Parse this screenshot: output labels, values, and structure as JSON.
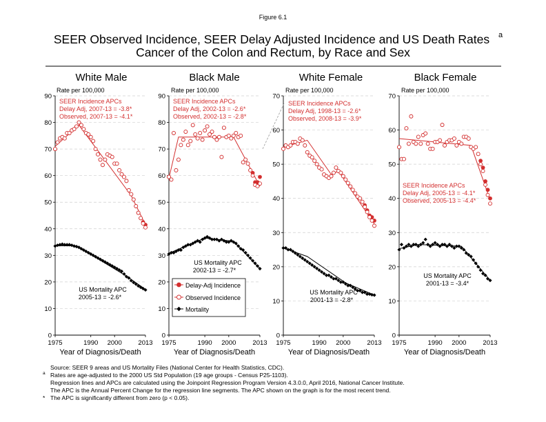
{
  "figure": {
    "label": "Figure 6.1",
    "title_line1": "SEER Observed Incidence, SEER Delay Adjusted Incidence and US Death Rates",
    "title_superscript": "a",
    "title_line2": "Cancer of the Colon and Rectum, by Race and Sex"
  },
  "colors": {
    "incidence": "#d32f2f",
    "mortality": "#000000",
    "grid": "#cfcfcf"
  },
  "legend": {
    "delay_adj": "Delay-Adj Incidence",
    "observed": "Observed Incidence",
    "mortality": "Mortality"
  },
  "footnotes": {
    "source": "Source: SEER 9 areas and US Mortality Files (National Center for Health Statistics, CDC).",
    "a_marker": "a",
    "a_text": "Rates are age-adjusted to the 2000 US Std Population (19 age groups - Census P25-1103).",
    "regression": "Regression lines and APCs are calculated using the Joinpoint Regression Program Version 4.3.0.0, April 2016, National Cancer Institute.",
    "apc_def": "The APC is the Annual Percent Change for the regression line segments. The APC shown on the graph is for the most recent trend.",
    "star_marker": "*",
    "star_text": "The APC is significantly different from zero (p < 0.05)."
  },
  "chart_data": [
    {
      "type": "scatter",
      "title": "White Male",
      "ylabel": "Rate per 100,000",
      "xlabel": "Year of Diagnosis/Death",
      "xlim": [
        1975,
        2013
      ],
      "ylim": [
        0,
        90
      ],
      "xticks": [
        1975,
        1990,
        2000,
        2013
      ],
      "yticks": [
        0,
        10,
        20,
        30,
        40,
        50,
        60,
        70,
        80,
        90
      ],
      "grid": true,
      "legend": "none",
      "annotations": {
        "incidence_header": "SEER Incidence APCs",
        "incidence_delay": "Delay Adj, 2007-13 = -3.8*",
        "incidence_observed": "Observed, 2007-13 = -4.1*",
        "mortality_header": "US Mortality APC",
        "mortality_value": "2005-13 = -2.6*"
      },
      "x": [
        1975,
        1976,
        1977,
        1978,
        1979,
        1980,
        1981,
        1982,
        1983,
        1984,
        1985,
        1986,
        1987,
        1988,
        1989,
        1990,
        1991,
        1992,
        1993,
        1994,
        1995,
        1996,
        1997,
        1998,
        1999,
        2000,
        2001,
        2002,
        2003,
        2004,
        2005,
        2006,
        2007,
        2008,
        2009,
        2010,
        2011,
        2012,
        2013
      ],
      "series": [
        {
          "name": "Delay-Adj Incidence",
          "kind": "delay",
          "values": [
            70.0,
            72.5,
            74.0,
            74.5,
            74.0,
            76.0,
            76.0,
            77.0,
            77.5,
            78.5,
            80.0,
            79.0,
            77.5,
            76.0,
            75.5,
            74.5,
            73.0,
            70.0,
            68.0,
            66.0,
            64.0,
            66.0,
            68.0,
            67.5,
            67.0,
            64.5,
            64.5,
            62.0,
            60.5,
            59.5,
            58.0,
            54.5,
            53.0,
            51.0,
            48.5,
            46.0,
            44.0,
            42.5,
            41.5
          ]
        },
        {
          "name": "Observed Incidence",
          "kind": "observed",
          "values": [
            70.0,
            72.5,
            74.0,
            74.5,
            74.0,
            76.0,
            76.0,
            77.0,
            77.5,
            78.5,
            80.0,
            79.0,
            77.5,
            76.0,
            75.5,
            74.5,
            73.0,
            70.0,
            68.0,
            66.0,
            64.0,
            66.0,
            68.0,
            67.5,
            67.0,
            64.5,
            64.5,
            62.0,
            60.5,
            59.5,
            58.0,
            54.5,
            53.0,
            51.0,
            48.5,
            46.0,
            44.0,
            42.0,
            40.5
          ]
        },
        {
          "name": "Mortality",
          "kind": "mortality",
          "values": [
            33.5,
            33.8,
            34.0,
            34.2,
            34.0,
            34.0,
            34.0,
            33.8,
            33.5,
            33.3,
            33.0,
            32.5,
            32.0,
            31.5,
            31.0,
            30.5,
            30.0,
            29.5,
            29.0,
            28.5,
            28.0,
            27.5,
            27.0,
            26.5,
            26.0,
            25.5,
            25.0,
            24.5,
            24.0,
            23.0,
            22.0,
            21.5,
            20.5,
            19.8,
            19.2,
            18.5,
            18.0,
            17.5,
            17.0
          ]
        }
      ],
      "joinpoint_lines": [
        {
          "kind": "incidence",
          "points": [
            [
              1975,
              71.0
            ],
            [
              1985,
              79.0
            ],
            [
              2007,
              52.5
            ],
            [
              2013,
              41.5
            ]
          ]
        },
        {
          "kind": "mortality",
          "points": [
            [
              1975,
              33.6
            ],
            [
              1984,
              33.6
            ],
            [
              2005,
              22.2
            ],
            [
              2013,
              17.2
            ]
          ]
        }
      ]
    },
    {
      "type": "scatter",
      "title": "Black Male",
      "ylabel": "Rate per 100,000",
      "xlabel": "Year of Diagnosis/Death",
      "xlim": [
        1975,
        2013
      ],
      "ylim": [
        0,
        90
      ],
      "xticks": [
        1975,
        1990,
        2000,
        2013
      ],
      "yticks": [
        0,
        10,
        20,
        30,
        40,
        50,
        60,
        70,
        80,
        90
      ],
      "grid": true,
      "legend": "bottom-left",
      "annotations": {
        "incidence_header": "SEER Incidence APCs",
        "incidence_delay": "Delay Adj, 2002-13 = -2.6*",
        "incidence_observed": "Observed, 2002-13 = -2.8*",
        "mortality_header": "US Mortality APC",
        "mortality_value": "2002-13 = -2.7*"
      },
      "x": [
        1975,
        1976,
        1977,
        1978,
        1979,
        1980,
        1981,
        1982,
        1983,
        1984,
        1985,
        1986,
        1987,
        1988,
        1989,
        1990,
        1991,
        1992,
        1993,
        1994,
        1995,
        1996,
        1997,
        1998,
        1999,
        2000,
        2001,
        2002,
        2003,
        2004,
        2005,
        2006,
        2007,
        2008,
        2009,
        2010,
        2011,
        2012,
        2013
      ],
      "series": [
        {
          "name": "Delay-Adj Incidence",
          "kind": "delay",
          "values": [
            59.5,
            58.5,
            76.0,
            62.0,
            66.0,
            71.5,
            73.5,
            76.5,
            71.5,
            73.0,
            79.0,
            75.5,
            74.0,
            76.0,
            73.5,
            77.0,
            78.5,
            75.5,
            76.5,
            74.5,
            73.5,
            74.5,
            67.0,
            78.0,
            74.5,
            75.0,
            74.0,
            75.0,
            76.0,
            74.5,
            75.0,
            65.0,
            66.0,
            64.5,
            62.0,
            61.0,
            57.5,
            57.5,
            59.5
          ]
        },
        {
          "name": "Observed Incidence",
          "kind": "observed",
          "values": [
            59.5,
            58.5,
            76.0,
            62.0,
            66.0,
            71.5,
            73.5,
            76.5,
            71.5,
            73.0,
            79.0,
            75.5,
            74.0,
            76.0,
            73.5,
            77.0,
            78.5,
            75.5,
            76.5,
            74.5,
            73.5,
            74.5,
            67.0,
            78.0,
            74.5,
            75.0,
            74.0,
            75.0,
            76.0,
            74.5,
            75.0,
            65.0,
            66.0,
            64.5,
            62.0,
            60.0,
            56.5,
            56.0,
            57.0
          ]
        },
        {
          "name": "Mortality",
          "kind": "mortality",
          "values": [
            30.5,
            31.0,
            31.0,
            31.5,
            32.0,
            32.0,
            33.0,
            33.5,
            34.0,
            34.0,
            34.5,
            35.0,
            35.5,
            35.0,
            36.0,
            36.5,
            37.0,
            36.5,
            36.0,
            36.0,
            36.0,
            35.5,
            36.0,
            35.5,
            35.0,
            35.0,
            35.5,
            35.0,
            34.5,
            33.5,
            32.5,
            32.0,
            31.0,
            30.0,
            29.0,
            28.0,
            27.0,
            26.0,
            25.0
          ]
        }
      ],
      "joinpoint_lines": [
        {
          "kind": "incidence",
          "points": [
            [
              1975,
              59.0
            ],
            [
              1979,
              74.5
            ],
            [
              2002,
              74.5
            ],
            [
              2013,
              56.0
            ]
          ]
        },
        {
          "kind": "mortality",
          "points": [
            [
              1975,
              30.8
            ],
            [
              1990,
              36.5
            ],
            [
              2002,
              35.3
            ],
            [
              2013,
              25.0
            ]
          ]
        }
      ]
    },
    {
      "type": "scatter",
      "title": "White Female",
      "ylabel": "Rate per 100,000",
      "xlabel": "Year of Diagnosis/Death",
      "xlim": [
        1975,
        2013
      ],
      "ylim": [
        0,
        70
      ],
      "xticks": [
        1975,
        1990,
        2000,
        2013
      ],
      "yticks": [
        0,
        10,
        20,
        30,
        40,
        50,
        60,
        70
      ],
      "grid": true,
      "legend": "none",
      "annotations": {
        "incidence_header": "SEER Incidence APCs",
        "incidence_delay": "Delay Adj, 1998-13 = -2.6*",
        "incidence_observed": "Observed, 2008-13 = -3.9*",
        "mortality_header": "US Mortality APC",
        "mortality_value": "2001-13 = -2.8*"
      },
      "x": [
        1975,
        1976,
        1977,
        1978,
        1979,
        1980,
        1981,
        1982,
        1983,
        1984,
        1985,
        1986,
        1987,
        1988,
        1989,
        1990,
        1991,
        1992,
        1993,
        1994,
        1995,
        1996,
        1997,
        1998,
        1999,
        2000,
        2001,
        2002,
        2003,
        2004,
        2005,
        2006,
        2007,
        2008,
        2009,
        2010,
        2011,
        2012,
        2013
      ],
      "series": [
        {
          "name": "Delay-Adj Incidence",
          "kind": "delay",
          "values": [
            54.5,
            55.5,
            55.0,
            55.5,
            56.5,
            56.5,
            56.0,
            57.5,
            57.0,
            55.5,
            53.5,
            52.5,
            52.0,
            51.0,
            50.0,
            49.0,
            48.5,
            47.0,
            46.5,
            46.0,
            46.5,
            47.5,
            49.0,
            48.0,
            47.5,
            46.5,
            45.5,
            44.5,
            43.5,
            42.5,
            41.5,
            40.5,
            40.0,
            39.0,
            38.0,
            36.5,
            35.0,
            34.5,
            33.5
          ]
        },
        {
          "name": "Observed Incidence",
          "kind": "observed",
          "values": [
            54.5,
            55.5,
            55.0,
            55.5,
            56.5,
            56.5,
            56.0,
            57.5,
            57.0,
            55.5,
            53.5,
            52.5,
            52.0,
            51.0,
            50.0,
            49.0,
            48.5,
            47.0,
            46.5,
            46.0,
            46.5,
            47.5,
            49.0,
            48.0,
            47.5,
            46.5,
            45.5,
            44.5,
            43.5,
            42.5,
            41.5,
            40.5,
            40.0,
            39.0,
            37.5,
            36.0,
            34.5,
            33.5,
            32.0
          ]
        },
        {
          "name": "Mortality",
          "kind": "mortality",
          "values": [
            25.5,
            25.5,
            25.0,
            25.0,
            24.5,
            24.0,
            23.5,
            23.0,
            22.5,
            22.0,
            21.5,
            21.0,
            20.5,
            20.0,
            19.5,
            19.0,
            18.5,
            18.0,
            17.5,
            17.5,
            17.0,
            16.5,
            16.5,
            16.0,
            15.5,
            15.5,
            15.0,
            14.5,
            14.5,
            14.0,
            13.5,
            13.0,
            13.0,
            12.5,
            12.5,
            12.0,
            12.0,
            11.8,
            11.7
          ]
        }
      ],
      "joinpoint_lines": [
        {
          "kind": "incidence",
          "points": [
            [
              1975,
              55.0
            ],
            [
              1985,
              57.0
            ],
            [
              1995,
              47.0
            ],
            [
              1998,
              48.0
            ],
            [
              2013,
              32.5
            ]
          ]
        },
        {
          "kind": "mortality",
          "points": [
            [
              1975,
              25.5
            ],
            [
              1985,
              23.0
            ],
            [
              2001,
              15.3
            ],
            [
              2013,
              11.7
            ]
          ]
        }
      ]
    },
    {
      "type": "scatter",
      "title": "Black Female",
      "ylabel": "Rate per 100,000",
      "xlabel": "Year of Diagnosis/Death",
      "xlim": [
        1975,
        2013
      ],
      "ylim": [
        0,
        70
      ],
      "xticks": [
        1975,
        1990,
        2000,
        2013
      ],
      "yticks": [
        0,
        10,
        20,
        30,
        40,
        50,
        60,
        70
      ],
      "grid": true,
      "legend": "none",
      "annotations": {
        "incidence_header": "SEER Incidence APCs",
        "incidence_delay": "Delay Adj, 2005-13 = -4.1*",
        "incidence_observed": "Observed, 2005-13 = -4.4*",
        "mortality_header": "US Mortality APC",
        "mortality_value": "2001-13 = -3.4*"
      },
      "x": [
        1975,
        1976,
        1977,
        1978,
        1979,
        1980,
        1981,
        1982,
        1983,
        1984,
        1985,
        1986,
        1987,
        1988,
        1989,
        1990,
        1991,
        1992,
        1993,
        1994,
        1995,
        1996,
        1997,
        1998,
        1999,
        2000,
        2001,
        2002,
        2003,
        2004,
        2005,
        2006,
        2007,
        2008,
        2009,
        2010,
        2011,
        2012,
        2013
      ],
      "series": [
        {
          "name": "Delay-Adj Incidence",
          "kind": "delay",
          "values": [
            55.0,
            51.5,
            51.5,
            60.5,
            56.0,
            64.0,
            56.5,
            56.0,
            58.0,
            56.0,
            58.5,
            59.0,
            56.0,
            54.5,
            54.5,
            56.5,
            56.5,
            57.0,
            61.5,
            55.5,
            56.5,
            57.0,
            57.0,
            57.5,
            55.5,
            56.5,
            56.0,
            58.0,
            58.0,
            57.5,
            55.0,
            54.5,
            55.0,
            53.0,
            51.0,
            49.0,
            45.0,
            42.5,
            40.0
          ]
        },
        {
          "name": "Observed Incidence",
          "kind": "observed",
          "values": [
            55.0,
            51.5,
            51.5,
            60.5,
            56.0,
            64.0,
            56.5,
            56.0,
            58.0,
            56.0,
            58.5,
            59.0,
            56.0,
            54.5,
            54.5,
            56.5,
            56.5,
            57.0,
            61.5,
            55.5,
            56.5,
            57.0,
            57.0,
            57.5,
            55.5,
            56.5,
            56.0,
            58.0,
            58.0,
            57.5,
            55.0,
            54.5,
            55.0,
            53.0,
            50.0,
            48.0,
            44.0,
            41.0,
            38.5
          ]
        },
        {
          "name": "Mortality",
          "kind": "mortality",
          "values": [
            25.0,
            26.5,
            25.5,
            26.0,
            26.5,
            26.0,
            26.5,
            26.5,
            26.0,
            26.5,
            27.0,
            28.0,
            26.5,
            26.0,
            26.5,
            27.0,
            26.5,
            26.0,
            26.5,
            26.5,
            26.0,
            26.5,
            26.0,
            25.5,
            26.0,
            26.0,
            25.5,
            25.0,
            24.0,
            23.5,
            23.0,
            22.0,
            21.0,
            20.0,
            19.0,
            18.0,
            17.5,
            16.5,
            16.0
          ]
        }
      ],
      "joinpoint_lines": [
        {
          "kind": "incidence",
          "points": [
            [
              1975,
              57.5
            ],
            [
              2005,
              55.5
            ],
            [
              2013,
              39.5
            ]
          ]
        },
        {
          "kind": "mortality",
          "points": [
            [
              1975,
              25.3
            ],
            [
              1983,
              26.5
            ],
            [
              2001,
              26.0
            ],
            [
              2013,
              16.0
            ]
          ]
        }
      ]
    }
  ]
}
